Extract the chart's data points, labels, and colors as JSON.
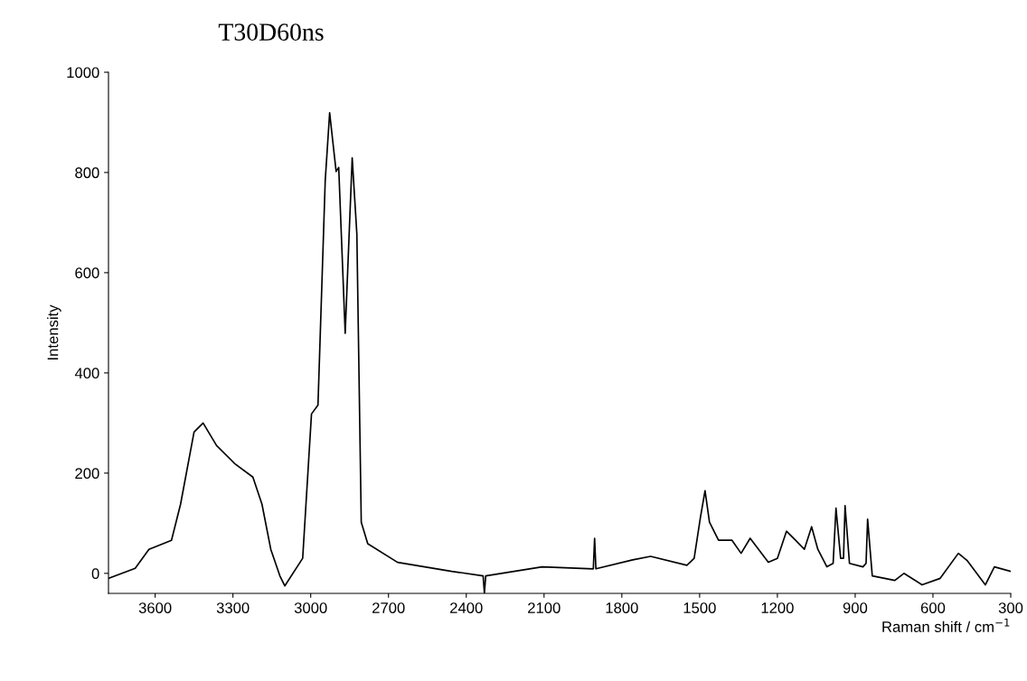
{
  "chart_data": {
    "type": "line",
    "title": "T30D60ns",
    "xlabel": "Raman shift / cm$^{−1}$",
    "ylabel": "Intensity",
    "x": [
      3780,
      3677,
      3624,
      3537,
      3502,
      3450,
      3415,
      3363,
      3293,
      3223,
      3188,
      3154,
      3119,
      3100,
      3031,
      2997,
      2972,
      2944,
      2927,
      2902,
      2892,
      2867,
      2840,
      2822,
      2805,
      2780,
      2665,
      2456,
      2335,
      2330,
      2325,
      2107,
      1910,
      1905,
      1900,
      1758,
      1689,
      1549,
      1521,
      1497,
      1479,
      1462,
      1427,
      1375,
      1340,
      1305,
      1235,
      1200,
      1165,
      1130,
      1096,
      1068,
      1044,
      1009,
      985,
      974,
      956,
      945,
      939,
      922,
      870,
      858,
      852,
      834,
      747,
      712,
      642,
      572,
      502,
      467,
      398,
      363,
      300
    ],
    "series": [
      {
        "color": "#000000",
        "values": [
          -10,
          10,
          48,
          66,
          138,
          282,
          300,
          255,
          219,
          192,
          138,
          48,
          -5,
          -25,
          30,
          318,
          336,
          784,
          919,
          802,
          810,
          479,
          829,
          677,
          102,
          59,
          22,
          4,
          -5,
          -40,
          -5,
          13,
          9,
          70,
          9,
          27,
          34,
          16,
          30,
          111,
          165,
          102,
          66,
          66,
          40,
          70,
          22,
          30,
          84,
          66,
          48,
          93,
          48,
          13,
          20,
          130,
          30,
          30,
          135,
          20,
          13,
          20,
          108,
          -5,
          -14,
          0,
          -23,
          -10,
          40,
          25,
          -23,
          13,
          4
        ]
      }
    ],
    "xlim": [
      3780,
      300
    ],
    "ylim": [
      -40,
      1000
    ],
    "xticks": [
      3600,
      3300,
      3000,
      2700,
      2400,
      2100,
      1800,
      1500,
      1200,
      900,
      600,
      300
    ],
    "yticks": [
      0,
      200,
      400,
      600,
      800,
      1000
    ],
    "grid": false,
    "legend": false
  }
}
